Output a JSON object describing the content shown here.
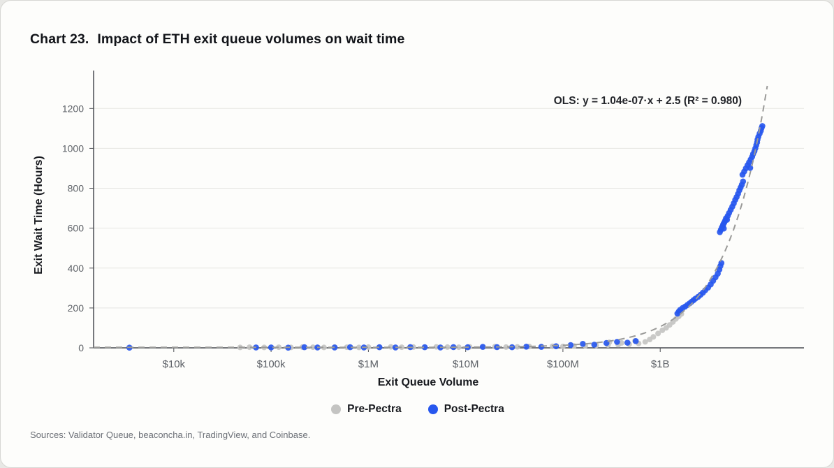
{
  "header": {
    "chart_label": "Chart 23.",
    "title": "Impact of ETH exit queue volumes on wait time"
  },
  "footer": {
    "source": "Sources: Validator Queue, beaconcha.in, TradingView, and Coinbase."
  },
  "chart_data": {
    "type": "scatter",
    "title": "Chart 23. Impact of ETH exit queue volumes on wait time",
    "xlabel": "Exit Queue Volume",
    "ylabel": "Exit Wait Time (Hours)",
    "annotation": "OLS: y = 1.04e-07·x + 2.5  (R² = 0.980)",
    "x_scale": "log",
    "x_domain": [
      1500,
      30000000000
    ],
    "y_domain": [
      0,
      1390
    ],
    "x_ticks": [
      {
        "value": 10000,
        "label": "$10k"
      },
      {
        "value": 100000,
        "label": "$100k"
      },
      {
        "value": 1000000,
        "label": "$1M"
      },
      {
        "value": 10000000,
        "label": "$10M"
      },
      {
        "value": 100000000,
        "label": "$100M"
      },
      {
        "value": 1000000000,
        "label": "$1B"
      }
    ],
    "y_ticks": [
      0,
      200,
      400,
      600,
      800,
      1000,
      1200
    ],
    "grid": "horizontal",
    "legend_position": "bottom",
    "colors": {
      "grid": "#e6e6e2",
      "axis": "#4a4d52",
      "trendline": "#9a9a98"
    },
    "ols": {
      "slope": 1.04e-07,
      "intercept": 2.5,
      "r2": 0.98,
      "line_x_range": [
        1500,
        12600000000
      ]
    },
    "series": [
      {
        "name": "Pre-Pectra",
        "color": "#c4c4c2",
        "points": [
          [
            48000,
            2
          ],
          [
            60000,
            3
          ],
          [
            85000,
            2
          ],
          [
            120000,
            3
          ],
          [
            160000,
            2
          ],
          [
            210000,
            4
          ],
          [
            270000,
            3
          ],
          [
            350000,
            2
          ],
          [
            450000,
            4
          ],
          [
            600000,
            3
          ],
          [
            800000,
            2
          ],
          [
            1000000,
            4
          ],
          [
            1300000,
            3
          ],
          [
            1700000,
            5
          ],
          [
            2200000,
            3
          ],
          [
            2900000,
            4
          ],
          [
            3800000,
            3
          ],
          [
            5000000,
            5
          ],
          [
            6500000,
            4
          ],
          [
            8500000,
            3
          ],
          [
            11000000,
            5
          ],
          [
            15000000,
            4
          ],
          [
            20000000,
            6
          ],
          [
            26000000,
            4
          ],
          [
            34000000,
            5
          ],
          [
            45000000,
            7
          ],
          [
            60000000,
            6
          ],
          [
            78000000,
            8
          ],
          [
            100000000,
            7
          ],
          [
            130000000,
            9
          ],
          [
            170000000,
            10
          ],
          [
            220000000,
            12
          ],
          [
            290000000,
            14
          ],
          [
            300000000,
            28
          ],
          [
            370000000,
            16
          ],
          [
            400000000,
            25
          ],
          [
            480000000,
            18
          ],
          [
            550000000,
            35
          ],
          [
            600000000,
            22
          ],
          [
            700000000,
            30
          ],
          [
            780000000,
            42
          ],
          [
            850000000,
            55
          ],
          [
            950000000,
            72
          ],
          [
            1050000000,
            88
          ],
          [
            1150000000,
            100
          ],
          [
            1250000000,
            115
          ],
          [
            1350000000,
            130
          ],
          [
            1450000000,
            145
          ],
          [
            1550000000,
            158
          ],
          [
            1650000000,
            170
          ]
        ]
      },
      {
        "name": "Post-Pectra",
        "color": "#2757ee",
        "points": [
          [
            3500,
            1
          ],
          [
            70000,
            2
          ],
          [
            100000,
            2
          ],
          [
            150000,
            1
          ],
          [
            220000,
            3
          ],
          [
            300000,
            2
          ],
          [
            450000,
            2
          ],
          [
            650000,
            3
          ],
          [
            900000,
            2
          ],
          [
            1300000,
            3
          ],
          [
            1900000,
            2
          ],
          [
            2700000,
            4
          ],
          [
            3800000,
            3
          ],
          [
            5500000,
            2
          ],
          [
            7500000,
            4
          ],
          [
            10500000,
            3
          ],
          [
            15000000,
            5
          ],
          [
            21000000,
            4
          ],
          [
            30000000,
            3
          ],
          [
            42000000,
            6
          ],
          [
            60000000,
            5
          ],
          [
            85000000,
            8
          ],
          [
            120000000,
            14
          ],
          [
            160000000,
            20
          ],
          [
            210000000,
            16
          ],
          [
            280000000,
            24
          ],
          [
            360000000,
            30
          ],
          [
            460000000,
            26
          ],
          [
            560000000,
            34
          ],
          [
            1500000000,
            172
          ],
          [
            1550000000,
            182
          ],
          [
            1600000000,
            190
          ],
          [
            1700000000,
            200
          ],
          [
            1800000000,
            207
          ],
          [
            1900000000,
            215
          ],
          [
            2000000000,
            223
          ],
          [
            2100000000,
            231
          ],
          [
            2200000000,
            239
          ],
          [
            2300000000,
            247
          ],
          [
            2450000000,
            256
          ],
          [
            2600000000,
            266
          ],
          [
            2750000000,
            277
          ],
          [
            2900000000,
            289
          ],
          [
            3100000000,
            302
          ],
          [
            3300000000,
            318
          ],
          [
            3500000000,
            336
          ],
          [
            3700000000,
            354
          ],
          [
            3900000000,
            372
          ],
          [
            4050000000,
            392
          ],
          [
            4150000000,
            410
          ],
          [
            4250000000,
            425
          ],
          [
            4100000000,
            580
          ],
          [
            4200000000,
            592
          ],
          [
            4300000000,
            604
          ],
          [
            4400000000,
            612
          ],
          [
            4450000000,
            620
          ],
          [
            4500000000,
            598
          ],
          [
            4550000000,
            628
          ],
          [
            4650000000,
            638
          ],
          [
            4750000000,
            650
          ],
          [
            4850000000,
            642
          ],
          [
            4950000000,
            662
          ],
          [
            5100000000,
            676
          ],
          [
            5300000000,
            692
          ],
          [
            5500000000,
            708
          ],
          [
            5700000000,
            724
          ],
          [
            5900000000,
            742
          ],
          [
            6100000000,
            756
          ],
          [
            6300000000,
            772
          ],
          [
            6500000000,
            790
          ],
          [
            6700000000,
            804
          ],
          [
            6900000000,
            818
          ],
          [
            7000000000,
            868
          ],
          [
            7100000000,
            834
          ],
          [
            7300000000,
            884
          ],
          [
            7600000000,
            900
          ],
          [
            7900000000,
            916
          ],
          [
            8200000000,
            930
          ],
          [
            8400000000,
            902
          ],
          [
            8500000000,
            944
          ],
          [
            8800000000,
            958
          ],
          [
            9000000000,
            972
          ],
          [
            9300000000,
            986
          ],
          [
            9500000000,
            1000
          ],
          [
            9700000000,
            1016
          ],
          [
            9900000000,
            1030
          ],
          [
            10000000000,
            1044
          ],
          [
            10200000000,
            1058
          ],
          [
            10500000000,
            1074
          ],
          [
            10800000000,
            1088
          ],
          [
            11000000000,
            1102
          ],
          [
            11200000000,
            1112
          ]
        ]
      }
    ]
  }
}
